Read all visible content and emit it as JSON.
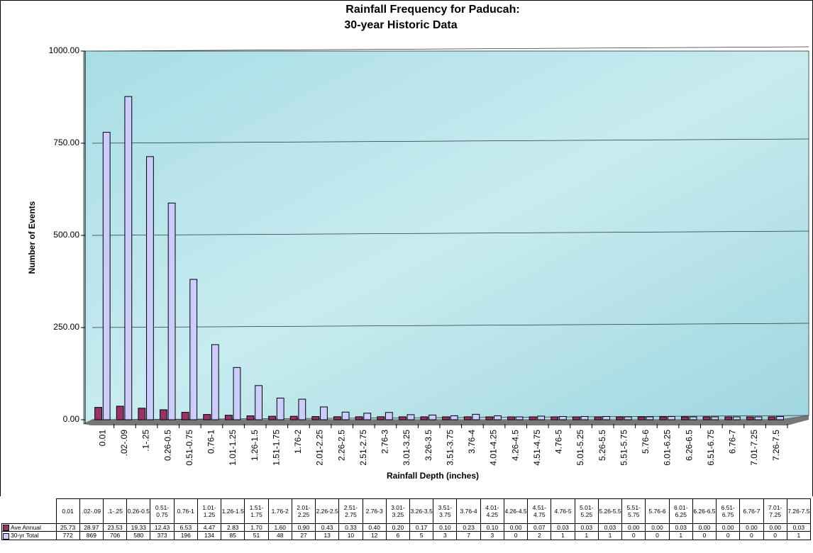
{
  "chart_data": {
    "type": "bar",
    "title": "Rainfall Frequency for Paducah:",
    "subtitle": "30-year Historic Data",
    "x_label": "Rainfall Depth (inches)",
    "y_label": "Number of Events",
    "categories": [
      "0.01",
      ".02-.09",
      ".1-.25",
      "0.26-0.5",
      "0.51-0.75",
      "0.76-1",
      "1.01-1.25",
      "1.26-1.5",
      "1.51-1.75",
      "1.76-2",
      "2.01-2.25",
      "2.26-2.5",
      "2.51-2.75",
      "2.76-3",
      "3.01-3.25",
      "3.26-3.5",
      "3.51-3.75",
      "3.76-4",
      "4.01-4.25",
      "4.26-4.5",
      "4.51-4.75",
      "4.76-5",
      "5.01-5.25",
      "5.26-5.5",
      "5.51-5.75",
      "5.76-6",
      "6.01-6.25",
      "6.26-6.5",
      "6.51-6.75",
      "6.76-7",
      "7.01-7.25",
      "7.26-7.5"
    ],
    "series": [
      {
        "name": "Ave Annual",
        "color": "#993366",
        "values": [
          25.73,
          28.97,
          23.53,
          19.33,
          12.43,
          6.53,
          4.47,
          2.83,
          1.7,
          1.6,
          0.9,
          0.43,
          0.33,
          0.4,
          0.2,
          0.17,
          0.1,
          0.23,
          0.1,
          0,
          0.07,
          0.03,
          0.03,
          0.03,
          0,
          0,
          0.03,
          0,
          0,
          0,
          0,
          0.03
        ],
        "value_labels": [
          "25.73",
          "28.97",
          "23.53",
          "19.33",
          "12.43",
          "6.53",
          "4.47",
          "2.83",
          "1.70",
          "1.60",
          "0.90",
          "0.43",
          "0.33",
          "0.40",
          "0.20",
          "0.17",
          "0.10",
          "0.23",
          "0.10",
          "0.00",
          "0.07",
          "0.03",
          "0.03",
          "0.03",
          "0.00",
          "0.00",
          "0.03",
          "0.00",
          "0.00",
          "0.00",
          "0.00",
          "0.03"
        ]
      },
      {
        "name": "30-yr Total",
        "color": "#CCCCFF",
        "values": [
          772,
          869,
          706,
          580,
          373,
          196,
          134,
          85,
          51,
          48,
          27,
          13,
          10,
          12,
          6,
          5,
          3,
          7,
          3,
          0,
          2,
          1,
          1,
          1,
          0,
          0,
          1,
          0,
          0,
          0,
          0,
          1
        ]
      }
    ],
    "ylim": [
      0,
      1000
    ],
    "yticks": [
      {
        "value": 0,
        "label": "0.00"
      },
      {
        "value": 250,
        "label": "250.00"
      },
      {
        "value": 500,
        "label": "500.00"
      },
      {
        "value": 750,
        "label": "750.00"
      },
      {
        "value": 1000,
        "label": "1000.00"
      }
    ],
    "grid": true
  }
}
